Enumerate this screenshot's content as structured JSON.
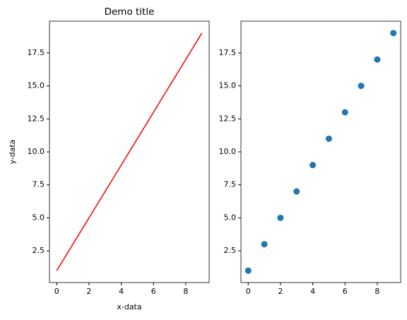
{
  "chart_data": [
    {
      "type": "line",
      "title": "Demo title",
      "x_label": "x-data",
      "y_label": "y-data",
      "x": [
        0,
        1,
        2,
        3,
        4,
        5,
        6,
        7,
        8,
        9
      ],
      "series": [
        {
          "color": "#ff0000",
          "values": [
            1,
            3,
            5,
            7,
            9,
            11,
            13,
            15,
            17,
            19
          ]
        }
      ],
      "xlim": [
        -0.45,
        9.45
      ],
      "ylim": [
        0.1,
        19.9
      ],
      "xticks": [
        0,
        2,
        4,
        6,
        8
      ],
      "yticks": [
        2.5,
        {
          "value": 5,
          "label": "5.0"
        },
        7.5,
        {
          "value": 10,
          "label": "10.0"
        },
        12.5,
        {
          "value": 15,
          "label": "15.0"
        },
        17.5
      ]
    },
    {
      "type": "scatter",
      "x": [
        0,
        1,
        2,
        3,
        4,
        5,
        6,
        7,
        8,
        9
      ],
      "series": [
        {
          "color": "#1f77b4",
          "values": [
            1,
            3,
            5,
            7,
            9,
            11,
            13,
            15,
            17,
            19
          ]
        }
      ],
      "xlim": [
        -0.45,
        9.45
      ],
      "ylim": [
        0.1,
        19.9
      ],
      "xticks": [
        0,
        2,
        4,
        6,
        8
      ],
      "yticks": [
        2.5,
        {
          "value": 5,
          "label": "5.0"
        },
        7.5,
        {
          "value": 10,
          "label": "10.0"
        },
        12.5,
        {
          "value": 15,
          "label": "15.0"
        },
        17.5
      ]
    }
  ]
}
